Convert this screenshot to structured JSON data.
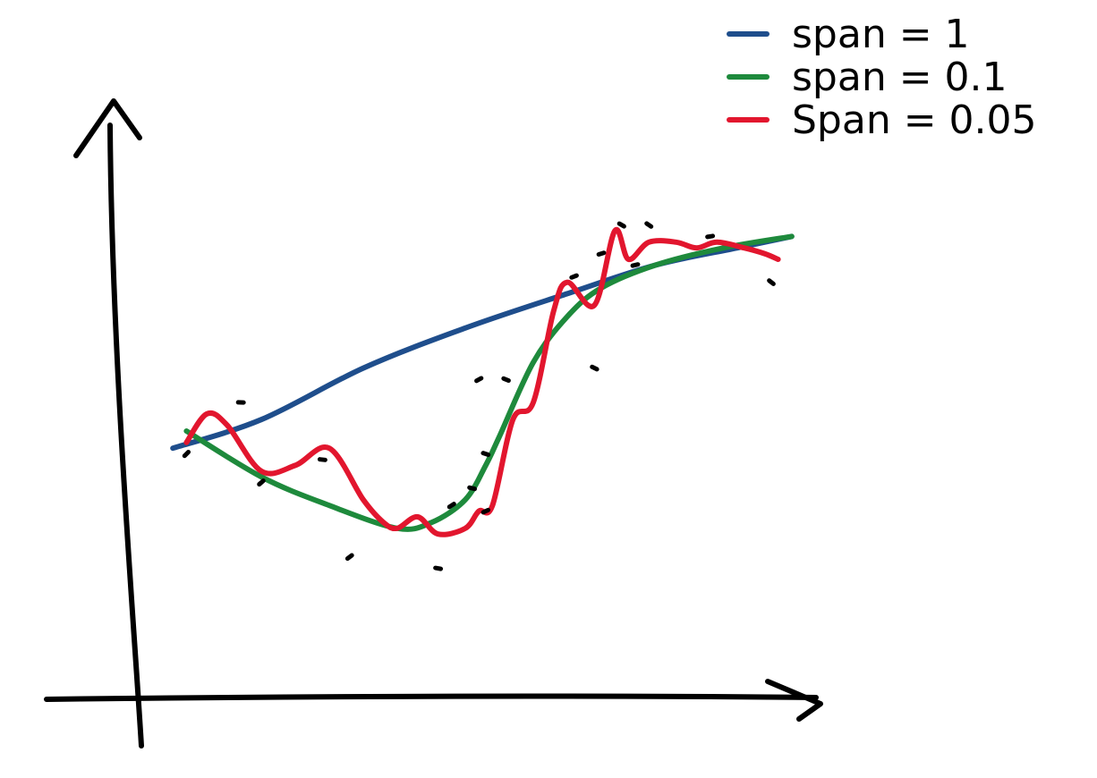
{
  "chart_data": {
    "type": "scatter",
    "title": "",
    "xlabel": "",
    "ylabel": "",
    "xlim": [
      0,
      1
    ],
    "ylim": [
      0,
      1
    ],
    "grid": false,
    "legend_position": "top-right",
    "points": {
      "x": [
        0.09,
        0.17,
        0.2,
        0.29,
        0.33,
        0.46,
        0.48,
        0.51,
        0.52,
        0.53,
        0.53,
        0.56,
        0.66,
        0.69,
        0.7,
        0.73,
        0.75,
        0.77,
        0.86,
        0.95
      ],
      "y": [
        0.41,
        0.5,
        0.36,
        0.4,
        0.23,
        0.21,
        0.32,
        0.35,
        0.54,
        0.41,
        0.31,
        0.54,
        0.72,
        0.56,
        0.76,
        0.81,
        0.74,
        0.81,
        0.79,
        0.71
      ]
    },
    "series": [
      {
        "name": "span = 1",
        "color": "#1f4e8c",
        "x": [
          0.07,
          0.2,
          0.35,
          0.5,
          0.65,
          0.78,
          0.9,
          0.98
        ],
        "y": [
          0.42,
          0.47,
          0.56,
          0.63,
          0.69,
          0.74,
          0.77,
          0.79
        ]
      },
      {
        "name": "span = 0.1",
        "color": "#1e8a3c",
        "x": [
          0.09,
          0.2,
          0.3,
          0.4,
          0.45,
          0.5,
          0.53,
          0.55,
          0.6,
          0.65,
          0.7,
          0.78,
          0.88,
          0.98
        ],
        "y": [
          0.45,
          0.37,
          0.32,
          0.28,
          0.29,
          0.33,
          0.39,
          0.44,
          0.57,
          0.65,
          0.7,
          0.74,
          0.77,
          0.79
        ]
      },
      {
        "name": "Span = 0.05",
        "color": "#e2162e",
        "x": [
          0.09,
          0.12,
          0.15,
          0.2,
          0.25,
          0.3,
          0.35,
          0.38,
          0.4,
          0.43,
          0.46,
          0.5,
          0.52,
          0.54,
          0.57,
          0.6,
          0.63,
          0.65,
          0.69,
          0.72,
          0.74,
          0.77,
          0.81,
          0.84,
          0.87,
          0.91,
          0.94,
          0.96
        ],
        "y": [
          0.43,
          0.48,
          0.46,
          0.38,
          0.39,
          0.42,
          0.33,
          0.29,
          0.28,
          0.3,
          0.27,
          0.28,
          0.31,
          0.32,
          0.47,
          0.5,
          0.66,
          0.71,
          0.67,
          0.8,
          0.75,
          0.78,
          0.78,
          0.77,
          0.78,
          0.77,
          0.76,
          0.75
        ]
      }
    ],
    "legend": [
      {
        "label": "span = 1",
        "color": "#1f4e8c"
      },
      {
        "label": "span = 0.1",
        "color": "#1e8a3c"
      },
      {
        "label": "Span = 0.05",
        "color": "#e2162e"
      }
    ]
  }
}
